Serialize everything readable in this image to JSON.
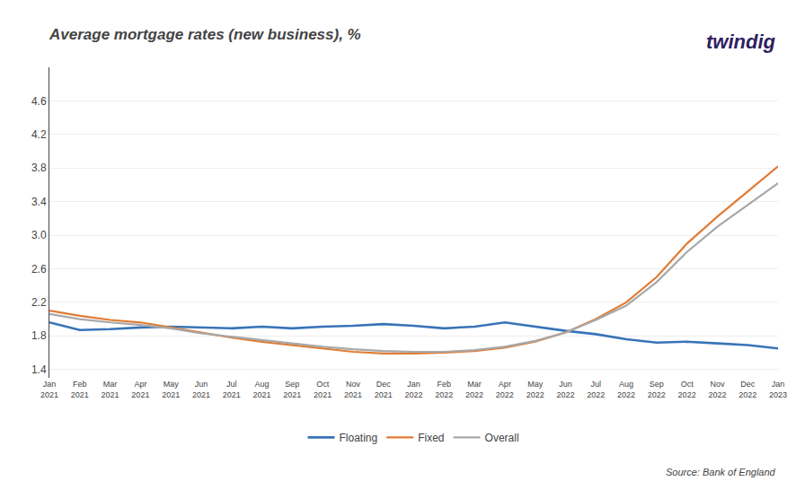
{
  "chart_data": {
    "type": "line",
    "title": "Average mortgage rates (new business), %",
    "annotations": [
      {
        "text": "twindig",
        "color": "#2d2060"
      },
      {
        "text": "Source: Bank of England"
      }
    ],
    "categories": [
      "Jan\n2021",
      "Feb\n2021",
      "Mar\n2021",
      "Apr\n2021",
      "May\n2021",
      "Jun\n2021",
      "Jul\n2021",
      "Aug\n2021",
      "Sep\n2021",
      "Oct\n2021",
      "Nov\n2021",
      "Dec\n2021",
      "Jan\n2022",
      "Feb\n2022",
      "Mar\n2022",
      "Apr\n2022",
      "May\n2022",
      "Jun\n2022",
      "Jul\n2022",
      "Aug\n2022",
      "Sep\n2022",
      "Oct\n2022",
      "Nov\n2022",
      "Dec\n2022",
      "Jan\n2023"
    ],
    "series": [
      {
        "name": "Floating",
        "color": "#3874b8",
        "values": [
          1.96,
          1.87,
          1.88,
          1.9,
          1.91,
          1.9,
          1.89,
          1.91,
          1.89,
          1.91,
          1.92,
          1.94,
          1.92,
          1.89,
          1.91,
          1.96,
          1.91,
          1.86,
          1.82,
          1.76,
          1.72,
          1.73,
          1.71,
          1.69,
          1.65
        ]
      },
      {
        "name": "Fixed",
        "color": "#e07c34",
        "values": [
          2.1,
          2.04,
          1.99,
          1.96,
          1.9,
          1.84,
          1.78,
          1.73,
          1.69,
          1.65,
          1.61,
          1.59,
          1.59,
          1.6,
          1.62,
          1.66,
          1.73,
          1.84,
          2.0,
          2.2,
          2.5,
          2.9,
          3.22,
          3.52,
          3.82
        ]
      },
      {
        "name": "Overall",
        "color": "#a8a8a8",
        "values": [
          2.06,
          2.0,
          1.96,
          1.93,
          1.89,
          1.83,
          1.79,
          1.75,
          1.71,
          1.67,
          1.64,
          1.62,
          1.61,
          1.61,
          1.63,
          1.67,
          1.74,
          1.84,
          1.99,
          2.16,
          2.44,
          2.8,
          3.1,
          3.36,
          3.62
        ]
      }
    ],
    "ylim": [
      1.3,
      5.0
    ],
    "yticks": [
      1.4,
      1.8,
      2.2,
      2.6,
      {
        "value": 3.0,
        "label": "3.0"
      },
      3.4,
      3.8,
      4.2,
      4.6
    ],
    "grid": true,
    "legend": "bottom"
  }
}
